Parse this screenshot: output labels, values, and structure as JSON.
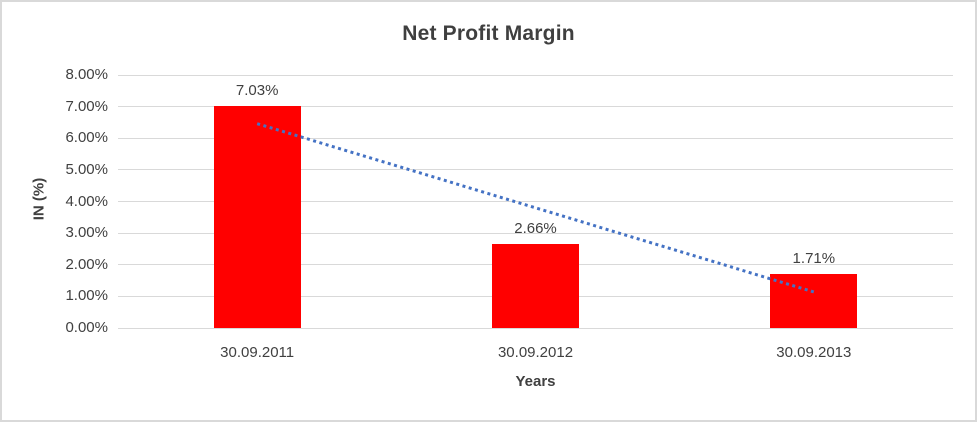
{
  "chart_data": {
    "type": "bar",
    "title": "Net Profit Margin",
    "categories": [
      "30.09.2011",
      "30.09.2012",
      "30.09.2013"
    ],
    "values": [
      7.03,
      2.66,
      1.71
    ],
    "value_labels": [
      "7.03%",
      "2.66%",
      "1.71%"
    ],
    "xlabel": "Years",
    "ylabel": "IN (%)",
    "ylim": [
      0,
      8
    ],
    "ytick_step": 1,
    "ytick_labels": [
      "0.00%",
      "1.00%",
      "2.00%",
      "3.00%",
      "4.00%",
      "5.00%",
      "6.00%",
      "7.00%",
      "8.00%"
    ],
    "grid": true,
    "legend": "none",
    "series_name": "Net Profit Margin",
    "trendline": {
      "type": "linear",
      "style": "dotted",
      "start_value": 6.46,
      "end_value": 1.14
    },
    "colors": {
      "bar": "#FF0000",
      "trendline": "#4472C4",
      "gridline": "#D9D9D9",
      "text": "#404040",
      "frame_border": "#D9D9D9",
      "background": "#FFFFFF"
    }
  }
}
